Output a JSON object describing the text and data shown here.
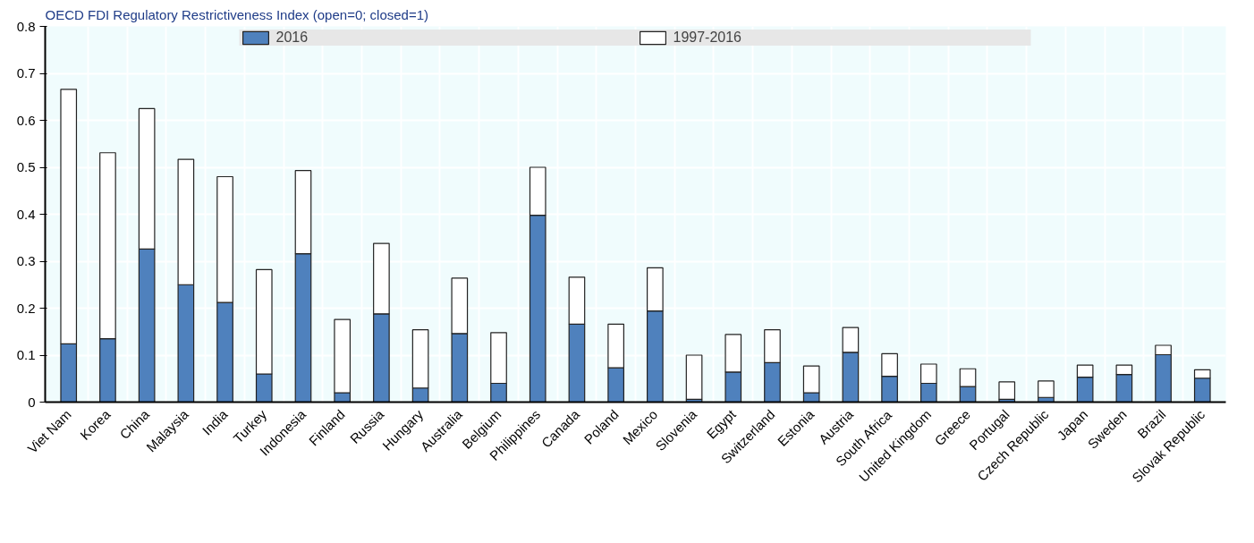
{
  "chart_data": {
    "type": "bar",
    "stacked": true,
    "ylabel": "OECD FDI Regulatory Restrictiveness Index (open=0; closed=1)",
    "categories": [
      "Viet Nam",
      "Korea",
      "China",
      "Malaysia",
      "India",
      "Turkey",
      "Indonesia",
      "Finland",
      "Russia",
      "Hungary",
      "Australia",
      "Belgium",
      "Philippines",
      "Canada",
      "Poland",
      "Mexico",
      "Slovenia",
      "Egypt",
      "Switzerland",
      "Estonia",
      "Austria",
      "South Africa",
      "United Kingdom",
      "Greece",
      "Portugal",
      "Czech Republic",
      "Japan",
      "Sweden",
      "Brazil",
      "Slovak Republic"
    ],
    "series": [
      {
        "name": "2016",
        "color": "#4f81bd",
        "values": [
          0.124,
          0.135,
          0.326,
          0.25,
          0.212,
          0.06,
          0.316,
          0.02,
          0.188,
          0.03,
          0.146,
          0.04,
          0.398,
          0.166,
          0.073,
          0.194,
          0.006,
          0.064,
          0.084,
          0.02,
          0.106,
          0.055,
          0.04,
          0.033,
          0.006,
          0.01,
          0.053,
          0.059,
          0.101,
          0.051
        ]
      },
      {
        "name": "1997-2016",
        "color": "#ffffff",
        "values": [
          0.542,
          0.396,
          0.299,
          0.267,
          0.268,
          0.222,
          0.177,
          0.156,
          0.15,
          0.124,
          0.118,
          0.108,
          0.102,
          0.1,
          0.093,
          0.092,
          0.094,
          0.08,
          0.07,
          0.057,
          0.053,
          0.048,
          0.041,
          0.038,
          0.037,
          0.035,
          0.026,
          0.02,
          0.02,
          0.018
        ]
      }
    ],
    "ylim": [
      0,
      0.8
    ],
    "yticks": [
      0,
      0.1,
      0.2,
      0.3,
      0.4,
      0.5,
      0.6,
      0.7,
      0.8
    ],
    "grid": true,
    "legend": "top"
  }
}
